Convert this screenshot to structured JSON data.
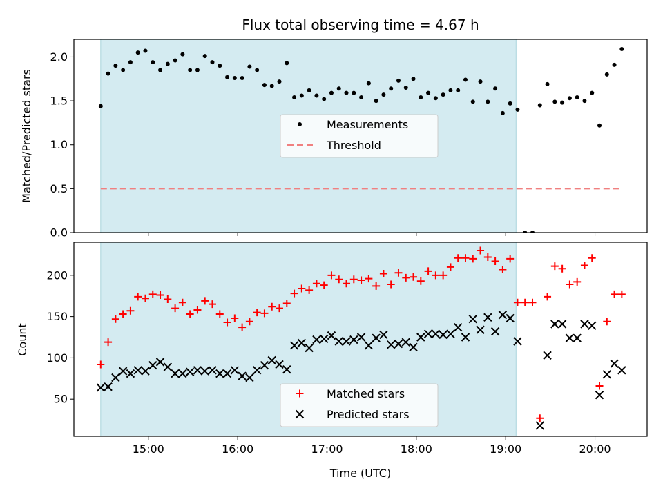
{
  "chart_data": [
    {
      "type": "scatter",
      "title": "Flux total observing time = 4.67 h",
      "xlabel": "",
      "ylabel": "Matched/Predicted stars",
      "ylim": [
        0,
        2.2
      ],
      "yticks": [
        "0.0",
        "0.5",
        "1.0",
        "1.5",
        "2.0"
      ],
      "ytick_values": [
        0,
        0.5,
        1.0,
        1.5,
        2.0
      ],
      "xlim": [
        "14:10",
        "20:35"
      ],
      "shaded_span": [
        "14:28",
        "19:07"
      ],
      "shade_color": "#d4ebf1",
      "legend": {
        "placement": "center",
        "entries": [
          "Measurements",
          "Threshold"
        ]
      },
      "series": [
        {
          "name": "Measurements",
          "marker": "dot",
          "color": "#000000",
          "points": [
            [
              "14:28",
              1.44
            ],
            [
              "14:33",
              1.81
            ],
            [
              "14:38",
              1.9
            ],
            [
              "14:43",
              1.85
            ],
            [
              "14:48",
              1.94
            ],
            [
              "14:53",
              2.05
            ],
            [
              "14:58",
              2.07
            ],
            [
              "15:03",
              1.94
            ],
            [
              "15:08",
              1.85
            ],
            [
              "15:13",
              1.92
            ],
            [
              "15:18",
              1.96
            ],
            [
              "15:23",
              2.03
            ],
            [
              "15:28",
              1.85
            ],
            [
              "15:33",
              1.85
            ],
            [
              "15:38",
              2.01
            ],
            [
              "15:43",
              1.94
            ],
            [
              "15:48",
              1.9
            ],
            [
              "15:53",
              1.77
            ],
            [
              "15:58",
              1.76
            ],
            [
              "16:03",
              1.76
            ],
            [
              "16:08",
              1.89
            ],
            [
              "16:13",
              1.85
            ],
            [
              "16:18",
              1.68
            ],
            [
              "16:23",
              1.67
            ],
            [
              "16:28",
              1.72
            ],
            [
              "16:33",
              1.93
            ],
            [
              "16:38",
              1.54
            ],
            [
              "16:43",
              1.56
            ],
            [
              "16:48",
              1.62
            ],
            [
              "16:53",
              1.56
            ],
            [
              "16:58",
              1.52
            ],
            [
              "17:03",
              1.59
            ],
            [
              "17:08",
              1.64
            ],
            [
              "17:13",
              1.59
            ],
            [
              "17:18",
              1.59
            ],
            [
              "17:23",
              1.54
            ],
            [
              "17:28",
              1.7
            ],
            [
              "17:33",
              1.5
            ],
            [
              "17:38",
              1.57
            ],
            [
              "17:43",
              1.64
            ],
            [
              "17:48",
              1.73
            ],
            [
              "17:53",
              1.65
            ],
            [
              "17:58",
              1.75
            ],
            [
              "18:03",
              1.54
            ],
            [
              "18:08",
              1.59
            ],
            [
              "18:13",
              1.53
            ],
            [
              "18:18",
              1.57
            ],
            [
              "18:23",
              1.62
            ],
            [
              "18:28",
              1.62
            ],
            [
              "18:33",
              1.74
            ],
            [
              "18:38",
              1.49
            ],
            [
              "18:43",
              1.72
            ],
            [
              "18:48",
              1.49
            ],
            [
              "18:53",
              1.64
            ],
            [
              "18:58",
              1.36
            ],
            [
              "19:03",
              1.47
            ],
            [
              "19:08",
              1.4
            ],
            [
              "19:13",
              0.0
            ],
            [
              "19:18",
              0.0
            ],
            [
              "19:23",
              1.45
            ],
            [
              "19:28",
              1.69
            ],
            [
              "19:33",
              1.49
            ],
            [
              "19:38",
              1.48
            ],
            [
              "19:43",
              1.53
            ],
            [
              "19:48",
              1.54
            ],
            [
              "19:53",
              1.5
            ],
            [
              "19:58",
              1.59
            ],
            [
              "20:03",
              1.22
            ],
            [
              "20:08",
              1.8
            ],
            [
              "20:13",
              1.91
            ],
            [
              "20:18",
              2.09
            ]
          ]
        },
        {
          "name": "Threshold",
          "marker": "dashed-line",
          "color": "#f08080",
          "points": [
            [
              "14:28",
              0.5
            ],
            [
              "20:18",
              0.5
            ]
          ]
        }
      ]
    },
    {
      "type": "scatter",
      "title": "",
      "xlabel": "Time (UTC)",
      "ylabel": "Count",
      "ylim": [
        5,
        240
      ],
      "yticks": [
        "50",
        "100",
        "150",
        "200"
      ],
      "ytick_values": [
        50,
        100,
        150,
        200
      ],
      "xlim": [
        "14:10",
        "20:35"
      ],
      "xticks": [
        "15:00",
        "16:00",
        "17:00",
        "18:00",
        "19:00",
        "20:00"
      ],
      "shaded_span": [
        "14:28",
        "19:07"
      ],
      "shade_color": "#d4ebf1",
      "legend": {
        "placement": "lower-center",
        "entries": [
          "Matched stars",
          "Predicted stars"
        ]
      },
      "series": [
        {
          "name": "Matched stars",
          "marker": "plus",
          "color": "#ff0000",
          "points": [
            [
              "14:28",
              92
            ],
            [
              "14:33",
              119
            ],
            [
              "14:38",
              147
            ],
            [
              "14:43",
              153
            ],
            [
              "14:48",
              157
            ],
            [
              "14:53",
              174
            ],
            [
              "14:58",
              172
            ],
            [
              "15:03",
              177
            ],
            [
              "15:08",
              176
            ],
            [
              "15:13",
              171
            ],
            [
              "15:18",
              160
            ],
            [
              "15:23",
              167
            ],
            [
              "15:28",
              153
            ],
            [
              "15:33",
              158
            ],
            [
              "15:38",
              169
            ],
            [
              "15:43",
              165
            ],
            [
              "15:48",
              153
            ],
            [
              "15:53",
              143
            ],
            [
              "15:58",
              148
            ],
            [
              "16:03",
              137
            ],
            [
              "16:08",
              144
            ],
            [
              "16:13",
              155
            ],
            [
              "16:18",
              154
            ],
            [
              "16:23",
              162
            ],
            [
              "16:28",
              160
            ],
            [
              "16:33",
              166
            ],
            [
              "16:38",
              178
            ],
            [
              "16:43",
              184
            ],
            [
              "16:48",
              182
            ],
            [
              "16:53",
              190
            ],
            [
              "16:58",
              188
            ],
            [
              "17:03",
              200
            ],
            [
              "17:08",
              195
            ],
            [
              "17:13",
              190
            ],
            [
              "17:18",
              195
            ],
            [
              "17:23",
              194
            ],
            [
              "17:28",
              196
            ],
            [
              "17:33",
              187
            ],
            [
              "17:38",
              202
            ],
            [
              "17:43",
              189
            ],
            [
              "17:48",
              203
            ],
            [
              "17:53",
              197
            ],
            [
              "17:58",
              198
            ],
            [
              "18:03",
              193
            ],
            [
              "18:08",
              205
            ],
            [
              "18:13",
              200
            ],
            [
              "18:18",
              200
            ],
            [
              "18:23",
              210
            ],
            [
              "18:28",
              221
            ],
            [
              "18:33",
              221
            ],
            [
              "18:38",
              220
            ],
            [
              "18:43",
              230
            ],
            [
              "18:48",
              222
            ],
            [
              "18:53",
              217
            ],
            [
              "18:58",
              207
            ],
            [
              "19:03",
              220
            ],
            [
              "19:08",
              167
            ],
            [
              "19:13",
              167
            ],
            [
              "19:18",
              167
            ],
            [
              "19:23",
              27
            ],
            [
              "19:28",
              174
            ],
            [
              "19:33",
              211
            ],
            [
              "19:38",
              208
            ],
            [
              "19:43",
              189
            ],
            [
              "19:48",
              192
            ],
            [
              "19:53",
              212
            ],
            [
              "19:58",
              221
            ],
            [
              "20:03",
              66
            ],
            [
              "20:08",
              144
            ],
            [
              "20:13",
              177
            ],
            [
              "20:18",
              177
            ]
          ]
        },
        {
          "name": "Predicted stars",
          "marker": "x",
          "color": "#000000",
          "points": [
            [
              "14:28",
              64
            ],
            [
              "14:33",
              65
            ],
            [
              "14:38",
              76
            ],
            [
              "14:43",
              84
            ],
            [
              "14:48",
              81
            ],
            [
              "14:53",
              85
            ],
            [
              "14:58",
              84
            ],
            [
              "15:03",
              91
            ],
            [
              "15:08",
              95
            ],
            [
              "15:13",
              89
            ],
            [
              "15:18",
              81
            ],
            [
              "15:23",
              81
            ],
            [
              "15:28",
              83
            ],
            [
              "15:33",
              85
            ],
            [
              "15:38",
              84
            ],
            [
              "15:43",
              85
            ],
            [
              "15:48",
              81
            ],
            [
              "15:53",
              81
            ],
            [
              "15:58",
              85
            ],
            [
              "16:03",
              78
            ],
            [
              "16:08",
              76
            ],
            [
              "16:13",
              85
            ],
            [
              "16:18",
              91
            ],
            [
              "16:23",
              97
            ],
            [
              "16:28",
              92
            ],
            [
              "16:33",
              86
            ],
            [
              "16:38",
              115
            ],
            [
              "16:43",
              118
            ],
            [
              "16:48",
              112
            ],
            [
              "16:53",
              122
            ],
            [
              "16:58",
              123
            ],
            [
              "17:03",
              127
            ],
            [
              "17:08",
              120
            ],
            [
              "17:13",
              120
            ],
            [
              "17:18",
              122
            ],
            [
              "17:23",
              125
            ],
            [
              "17:28",
              115
            ],
            [
              "17:33",
              124
            ],
            [
              "17:38",
              128
            ],
            [
              "17:43",
              116
            ],
            [
              "17:48",
              117
            ],
            [
              "17:53",
              119
            ],
            [
              "17:58",
              113
            ],
            [
              "18:03",
              125
            ],
            [
              "18:08",
              129
            ],
            [
              "18:13",
              129
            ],
            [
              "18:18",
              128
            ],
            [
              "18:23",
              129
            ],
            [
              "18:28",
              137
            ],
            [
              "18:33",
              125
            ],
            [
              "18:38",
              147
            ],
            [
              "18:43",
              134
            ],
            [
              "18:48",
              149
            ],
            [
              "18:53",
              132
            ],
            [
              "18:58",
              152
            ],
            [
              "19:03",
              148
            ],
            [
              "19:08",
              120
            ],
            [
              "19:23",
              18
            ],
            [
              "19:28",
              103
            ],
            [
              "19:33",
              141
            ],
            [
              "19:38",
              141
            ],
            [
              "19:43",
              124
            ],
            [
              "19:48",
              124
            ],
            [
              "19:53",
              141
            ],
            [
              "19:58",
              139
            ],
            [
              "20:03",
              55
            ],
            [
              "20:08",
              80
            ],
            [
              "20:13",
              93
            ],
            [
              "20:18",
              85
            ]
          ]
        }
      ]
    }
  ]
}
